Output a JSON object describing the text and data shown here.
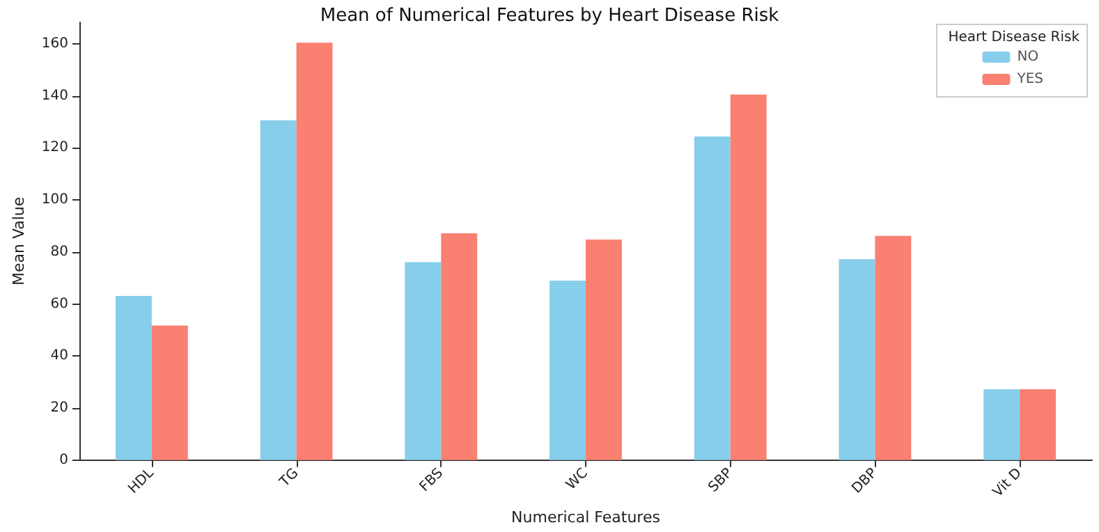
{
  "chart_data": {
    "type": "bar",
    "title": "Mean of Numerical Features by Heart Disease Risk",
    "xlabel": "Numerical Features",
    "ylabel": "Mean Value",
    "legend_title": "Heart Disease Risk",
    "categories": [
      "HDL",
      "TG",
      "FBS",
      "WC",
      "SBP",
      "DBP",
      "Vit D"
    ],
    "series": [
      {
        "name": "NO",
        "color": "#87ceeb",
        "values": [
          63.1,
          130.6,
          76.1,
          69.0,
          124.4,
          77.2,
          27.2
        ]
      },
      {
        "name": "YES",
        "color": "#fa8072",
        "values": [
          51.7,
          160.5,
          87.2,
          84.8,
          140.5,
          86.2,
          27.2
        ]
      }
    ],
    "ylim": [
      0,
      168.3
    ],
    "yticks": [
      0,
      20,
      40,
      60,
      80,
      100,
      120,
      140,
      160
    ],
    "grid": false,
    "legend": "top right"
  }
}
